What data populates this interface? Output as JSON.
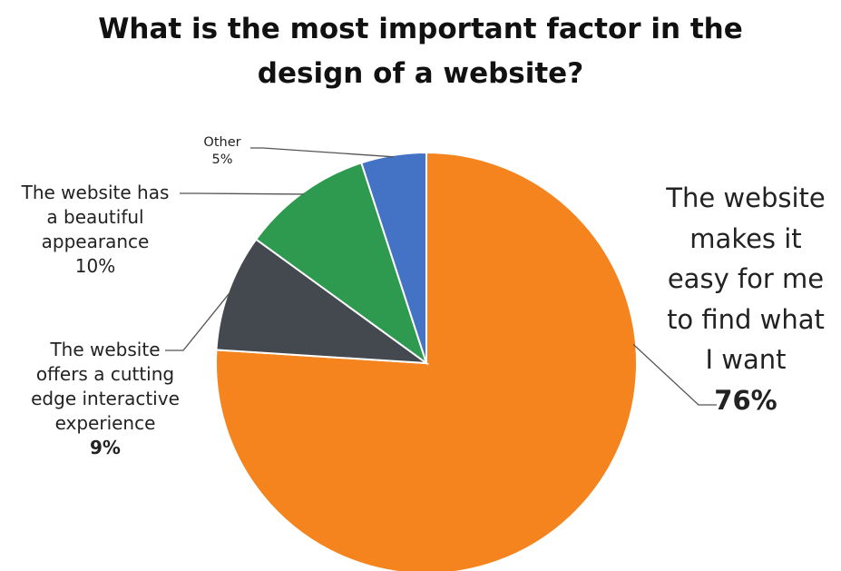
{
  "chart_data": {
    "type": "pie",
    "title_lines": [
      "What is the most important factor in the",
      "design of a website?"
    ],
    "slices": [
      {
        "label_lines": [
          "The website",
          "makes it",
          "easy for me",
          "to find what",
          "I want"
        ],
        "value": 76,
        "value_label": "76%",
        "color": "#f5841f",
        "pct_bold": true
      },
      {
        "label_lines": [
          "The website",
          "offers a cutting",
          "edge interactive",
          "experience"
        ],
        "value": 9,
        "value_label": "9%",
        "color": "#44494f",
        "pct_bold": true
      },
      {
        "label_lines": [
          "The website has",
          "a beautiful",
          "appearance"
        ],
        "value": 10,
        "value_label": "10%",
        "color": "#2e9a4f",
        "pct_bold": false
      },
      {
        "label_lines": [
          "Other"
        ],
        "value": 5,
        "value_label": "5%",
        "color": "#4472c4",
        "pct_bold": false
      }
    ]
  }
}
